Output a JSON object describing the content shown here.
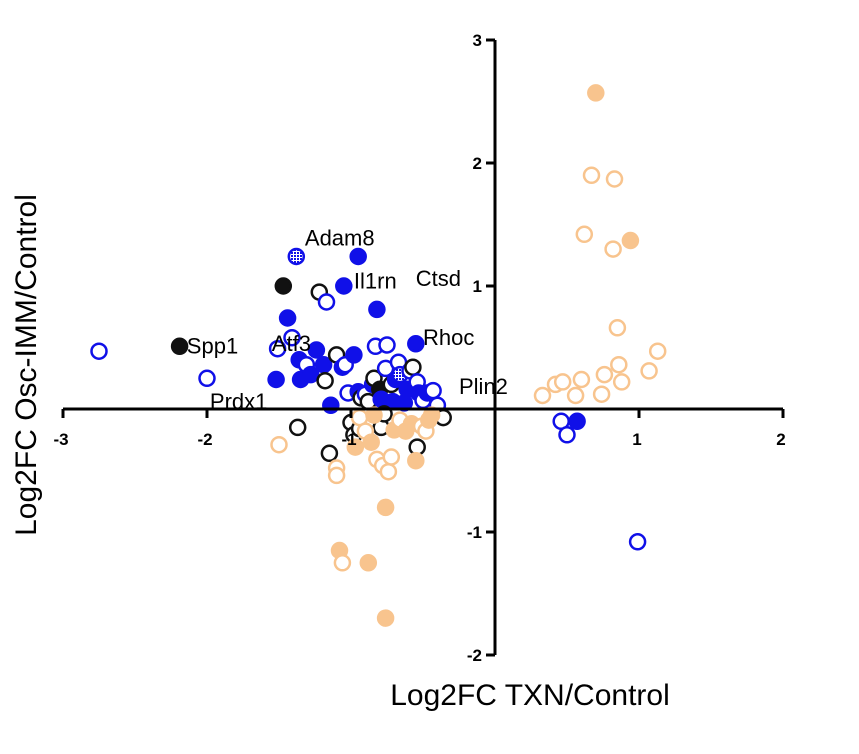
{
  "chart_data": {
    "type": "scatter",
    "title": "",
    "xlabel": "Log2FC TXN/Control",
    "ylabel": "Log2FC Osc-IMM/Control",
    "xlim": [
      -3,
      2
    ],
    "ylim": [
      -2,
      3
    ],
    "x_ticks": [
      "-3",
      "-2",
      "-1",
      "1",
      "2"
    ],
    "y_ticks": [
      "3",
      "2",
      "1",
      "-1",
      "-2"
    ],
    "grid": false,
    "legend": "none",
    "colors": {
      "blue": "#1010e8",
      "black": "#111111",
      "orange": "#f8c48e",
      "orange_dark": "#f5b47c"
    },
    "points": [
      {
        "x": -2.75,
        "y": 0.47,
        "color": "blue",
        "fill": "open"
      },
      {
        "x": -2.19,
        "y": 0.51,
        "color": "black",
        "fill": "filled"
      },
      {
        "x": -2.0,
        "y": 0.25,
        "color": "blue",
        "fill": "open"
      },
      {
        "x": -1.51,
        "y": 0.49,
        "color": "blue",
        "fill": "open"
      },
      {
        "x": -1.52,
        "y": 0.24,
        "color": "blue",
        "fill": "filled"
      },
      {
        "x": -1.47,
        "y": 1.0,
        "color": "black",
        "fill": "filled"
      },
      {
        "x": -1.44,
        "y": 0.74,
        "color": "blue",
        "fill": "filled"
      },
      {
        "x": -1.41,
        "y": 0.58,
        "color": "blue",
        "fill": "open"
      },
      {
        "x": -1.38,
        "y": 1.24,
        "color": "blue",
        "fill": "hatched"
      },
      {
        "x": -1.36,
        "y": 0.4,
        "color": "blue",
        "fill": "filled"
      },
      {
        "x": -1.35,
        "y": 0.24,
        "color": "blue",
        "fill": "filled"
      },
      {
        "x": -1.31,
        "y": 0.36,
        "color": "blue",
        "fill": "open"
      },
      {
        "x": -1.28,
        "y": 0.28,
        "color": "blue",
        "fill": "filled"
      },
      {
        "x": -1.24,
        "y": 0.48,
        "color": "blue",
        "fill": "filled"
      },
      {
        "x": -1.22,
        "y": 0.95,
        "color": "black",
        "fill": "open"
      },
      {
        "x": -1.19,
        "y": 0.36,
        "color": "blue",
        "fill": "filled"
      },
      {
        "x": -1.18,
        "y": 0.23,
        "color": "black",
        "fill": "open"
      },
      {
        "x": -1.17,
        "y": 0.87,
        "color": "blue",
        "fill": "open"
      },
      {
        "x": -1.14,
        "y": 0.03,
        "color": "blue",
        "fill": "filled"
      },
      {
        "x": -1.1,
        "y": 0.44,
        "color": "black",
        "fill": "open"
      },
      {
        "x": -1.06,
        "y": 0.34,
        "color": "blue",
        "fill": "filled"
      },
      {
        "x": -1.05,
        "y": 1.0,
        "color": "blue",
        "fill": "filled"
      },
      {
        "x": -1.04,
        "y": 0.36,
        "color": "blue",
        "fill": "open"
      },
      {
        "x": -1.02,
        "y": 0.13,
        "color": "blue",
        "fill": "open"
      },
      {
        "x": -0.98,
        "y": 0.44,
        "color": "blue",
        "fill": "filled"
      },
      {
        "x": -0.95,
        "y": 1.24,
        "color": "blue",
        "fill": "filled"
      },
      {
        "x": -0.95,
        "y": 0.14,
        "color": "blue",
        "fill": "filled"
      },
      {
        "x": -0.93,
        "y": 0.09,
        "color": "black",
        "fill": "open"
      },
      {
        "x": -0.9,
        "y": 0.12,
        "color": "blue",
        "fill": "open"
      },
      {
        "x": -0.88,
        "y": 0.06,
        "color": "black",
        "fill": "open"
      },
      {
        "x": -0.85,
        "y": 0.2,
        "color": "blue",
        "fill": "filled"
      },
      {
        "x": -0.84,
        "y": 0.25,
        "color": "black",
        "fill": "open"
      },
      {
        "x": -0.83,
        "y": 0.51,
        "color": "blue",
        "fill": "open"
      },
      {
        "x": -0.82,
        "y": 0.81,
        "color": "blue",
        "fill": "filled"
      },
      {
        "x": -0.8,
        "y": 0.16,
        "color": "black",
        "fill": "filled"
      },
      {
        "x": -0.79,
        "y": 0.08,
        "color": "blue",
        "fill": "filled"
      },
      {
        "x": -0.76,
        "y": 0.33,
        "color": "blue",
        "fill": "open"
      },
      {
        "x": -0.75,
        "y": 0.52,
        "color": "blue",
        "fill": "open"
      },
      {
        "x": -0.72,
        "y": 0.2,
        "color": "black",
        "fill": "open"
      },
      {
        "x": -0.71,
        "y": 0.06,
        "color": "blue",
        "fill": "filled"
      },
      {
        "x": -0.69,
        "y": 0.24,
        "color": "blue",
        "fill": "filled"
      },
      {
        "x": -0.67,
        "y": 0.38,
        "color": "blue",
        "fill": "open"
      },
      {
        "x": -0.66,
        "y": 0.28,
        "color": "blue",
        "fill": "hatched"
      },
      {
        "x": -0.63,
        "y": 0.05,
        "color": "blue",
        "fill": "filled"
      },
      {
        "x": -0.61,
        "y": 0.16,
        "color": "blue",
        "fill": "filled"
      },
      {
        "x": -0.59,
        "y": 0.31,
        "color": "blue",
        "fill": "open"
      },
      {
        "x": -0.57,
        "y": 0.34,
        "color": "black",
        "fill": "open"
      },
      {
        "x": -0.55,
        "y": 0.53,
        "color": "blue",
        "fill": "filled"
      },
      {
        "x": -0.54,
        "y": 0.22,
        "color": "blue",
        "fill": "open"
      },
      {
        "x": -0.53,
        "y": 0.13,
        "color": "blue",
        "fill": "filled"
      },
      {
        "x": -0.5,
        "y": 0.07,
        "color": "blue",
        "fill": "open"
      },
      {
        "x": -0.47,
        "y": 0.13,
        "color": "blue",
        "fill": "filled"
      },
      {
        "x": -0.43,
        "y": 0.15,
        "color": "blue",
        "fill": "open"
      },
      {
        "x": -0.4,
        "y": 0.03,
        "color": "blue",
        "fill": "open"
      },
      {
        "x": -0.36,
        "y": -0.07,
        "color": "black",
        "fill": "open"
      },
      {
        "x": -1.37,
        "y": -0.15,
        "color": "black",
        "fill": "open"
      },
      {
        "x": -1.15,
        "y": -0.36,
        "color": "black",
        "fill": "open"
      },
      {
        "x": -1.0,
        "y": -0.11,
        "color": "black",
        "fill": "open"
      },
      {
        "x": -0.98,
        "y": -0.21,
        "color": "black",
        "fill": "open"
      },
      {
        "x": -0.94,
        "y": -0.16,
        "color": "black",
        "fill": "open"
      },
      {
        "x": -0.79,
        "y": -0.15,
        "color": "black",
        "fill": "open"
      },
      {
        "x": -0.77,
        "y": -0.04,
        "color": "black",
        "fill": "open"
      },
      {
        "x": -0.54,
        "y": -0.31,
        "color": "black",
        "fill": "open"
      },
      {
        "x": -1.5,
        "y": -0.29,
        "color": "orange",
        "fill": "open"
      },
      {
        "x": -1.1,
        "y": -0.48,
        "color": "orange",
        "fill": "open"
      },
      {
        "x": -1.1,
        "y": -0.54,
        "color": "orange",
        "fill": "open"
      },
      {
        "x": -0.97,
        "y": -0.31,
        "color": "orange",
        "fill": "filled"
      },
      {
        "x": -0.94,
        "y": -0.07,
        "color": "orange",
        "fill": "open"
      },
      {
        "x": -0.9,
        "y": -0.18,
        "color": "orange",
        "fill": "open"
      },
      {
        "x": -0.86,
        "y": -0.27,
        "color": "orange",
        "fill": "filled"
      },
      {
        "x": -0.84,
        "y": -0.05,
        "color": "orange",
        "fill": "filled"
      },
      {
        "x": -0.82,
        "y": -0.41,
        "color": "orange",
        "fill": "open"
      },
      {
        "x": -0.78,
        "y": -0.46,
        "color": "orange",
        "fill": "open"
      },
      {
        "x": -0.76,
        "y": -0.8,
        "color": "orange",
        "fill": "filled"
      },
      {
        "x": -0.74,
        "y": -0.51,
        "color": "orange",
        "fill": "open"
      },
      {
        "x": -0.72,
        "y": -0.39,
        "color": "orange",
        "fill": "open"
      },
      {
        "x": -0.7,
        "y": -0.17,
        "color": "orange",
        "fill": "filled"
      },
      {
        "x": -0.66,
        "y": -0.09,
        "color": "orange",
        "fill": "open"
      },
      {
        "x": -0.62,
        "y": -0.18,
        "color": "orange",
        "fill": "filled"
      },
      {
        "x": -0.58,
        "y": -0.12,
        "color": "orange",
        "fill": "filled"
      },
      {
        "x": -0.55,
        "y": -0.42,
        "color": "orange",
        "fill": "filled"
      },
      {
        "x": -0.51,
        "y": -0.14,
        "color": "orange",
        "fill": "open"
      },
      {
        "x": -0.48,
        "y": -0.18,
        "color": "orange",
        "fill": "open"
      },
      {
        "x": -0.46,
        "y": -0.09,
        "color": "orange",
        "fill": "filled"
      },
      {
        "x": -0.44,
        "y": -0.05,
        "color": "orange",
        "fill": "filled"
      },
      {
        "x": -1.08,
        "y": -1.15,
        "color": "orange",
        "fill": "filled"
      },
      {
        "x": -0.88,
        "y": -1.25,
        "color": "orange",
        "fill": "filled"
      },
      {
        "x": -1.06,
        "y": -1.25,
        "color": "orange",
        "fill": "open"
      },
      {
        "x": -0.76,
        "y": -1.7,
        "color": "orange",
        "fill": "filled"
      },
      {
        "x": 0.33,
        "y": 0.11,
        "color": "orange",
        "fill": "open"
      },
      {
        "x": 0.42,
        "y": 0.2,
        "color": "orange",
        "fill": "open"
      },
      {
        "x": 0.47,
        "y": 0.22,
        "color": "orange",
        "fill": "open"
      },
      {
        "x": 0.56,
        "y": 0.11,
        "color": "orange",
        "fill": "open"
      },
      {
        "x": 0.6,
        "y": 0.24,
        "color": "orange",
        "fill": "open"
      },
      {
        "x": 0.62,
        "y": 1.42,
        "color": "orange",
        "fill": "open"
      },
      {
        "x": 0.67,
        "y": 1.9,
        "color": "orange",
        "fill": "open"
      },
      {
        "x": 0.7,
        "y": 2.57,
        "color": "orange",
        "fill": "filled"
      },
      {
        "x": 0.74,
        "y": 0.12,
        "color": "orange",
        "fill": "open"
      },
      {
        "x": 0.76,
        "y": 0.28,
        "color": "orange",
        "fill": "open"
      },
      {
        "x": 0.82,
        "y": 1.3,
        "color": "orange",
        "fill": "open"
      },
      {
        "x": 0.83,
        "y": 1.87,
        "color": "orange",
        "fill": "open"
      },
      {
        "x": 0.85,
        "y": 0.66,
        "color": "orange",
        "fill": "open"
      },
      {
        "x": 0.86,
        "y": 0.36,
        "color": "orange",
        "fill": "open"
      },
      {
        "x": 0.88,
        "y": 0.22,
        "color": "orange",
        "fill": "open"
      },
      {
        "x": 0.94,
        "y": 1.37,
        "color": "orange",
        "fill": "filled"
      },
      {
        "x": 1.07,
        "y": 0.31,
        "color": "orange",
        "fill": "open"
      },
      {
        "x": 1.13,
        "y": 0.47,
        "color": "orange",
        "fill": "open"
      },
      {
        "x": 0.46,
        "y": -0.1,
        "color": "blue",
        "fill": "open"
      },
      {
        "x": 0.5,
        "y": -0.21,
        "color": "blue",
        "fill": "open"
      },
      {
        "x": 0.57,
        "y": -0.1,
        "color": "blue",
        "fill": "filled"
      },
      {
        "x": 0.99,
        "y": -1.08,
        "color": "blue",
        "fill": "open"
      }
    ],
    "annotations": [
      {
        "text": "Adam8",
        "x": -1.32,
        "y": 1.33
      },
      {
        "text": "Ctsd",
        "x": -0.55,
        "y": 1.0
      },
      {
        "text": "Il1rn",
        "x": -0.98,
        "y": 0.98
      },
      {
        "text": "Spp1",
        "x": -2.14,
        "y": 0.45
      },
      {
        "text": "Atf3",
        "x": -1.55,
        "y": 0.47
      },
      {
        "text": "Rhoc",
        "x": -0.5,
        "y": 0.52
      },
      {
        "text": "Plin2",
        "x": -0.25,
        "y": 0.12
      },
      {
        "text": "Prdx1",
        "x": -1.98,
        "y": 0.0
      }
    ]
  }
}
